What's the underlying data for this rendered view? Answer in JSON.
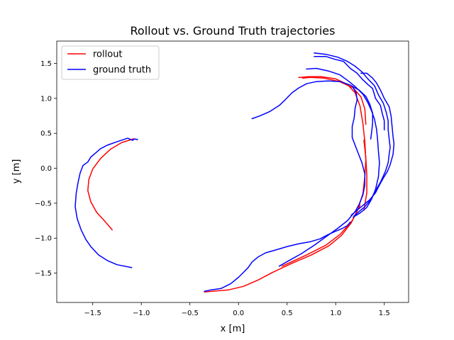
{
  "chart_data": {
    "type": "line",
    "title": "Rollout vs. Ground Truth trajectories",
    "xlabel": "x [m]",
    "ylabel": "y [m]",
    "xlim": [
      -1.87,
      1.75
    ],
    "ylim": [
      -1.92,
      1.82
    ],
    "xticks": [
      {
        "value": -1.5,
        "label": "−1.5"
      },
      {
        "value": -1.0,
        "label": "−1.0"
      },
      {
        "value": -0.5,
        "label": "−0.5"
      },
      {
        "value": 0.0,
        "label": "0.0"
      },
      {
        "value": 0.5,
        "label": "0.5"
      },
      {
        "value": 1.0,
        "label": "1.0"
      },
      {
        "value": 1.5,
        "label": "1.5"
      }
    ],
    "yticks": [
      {
        "value": -1.5,
        "label": "−1.5"
      },
      {
        "value": -1.0,
        "label": "−1.0"
      },
      {
        "value": -0.5,
        "label": "−0.5"
      },
      {
        "value": 0.0,
        "label": "0.0"
      },
      {
        "value": 0.5,
        "label": "0.5"
      },
      {
        "value": 1.0,
        "label": "1.0"
      },
      {
        "value": 1.5,
        "label": "1.5"
      }
    ],
    "grid": false,
    "legend_position": "top-left",
    "series": [
      {
        "name": "rollout",
        "color": "#ff0000",
        "paths": [
          [
            [
              -1.08,
              0.42
            ],
            [
              -1.2,
              0.37
            ],
            [
              -1.32,
              0.27
            ],
            [
              -1.42,
              0.14
            ],
            [
              -1.5,
              -0.01
            ],
            [
              -1.54,
              -0.16
            ],
            [
              -1.55,
              -0.32
            ],
            [
              -1.52,
              -0.48
            ],
            [
              -1.46,
              -0.63
            ],
            [
              -1.38,
              -0.75
            ],
            [
              -1.3,
              -0.88
            ]
          ],
          [
            [
              -0.35,
              -1.77
            ],
            [
              -0.1,
              -1.74
            ],
            [
              0.05,
              -1.69
            ],
            [
              0.2,
              -1.6
            ],
            [
              0.35,
              -1.49
            ],
            [
              0.55,
              -1.36
            ],
            [
              0.75,
              -1.24
            ],
            [
              0.93,
              -1.11
            ],
            [
              1.06,
              -0.96
            ],
            [
              1.16,
              -0.78
            ],
            [
              1.23,
              -0.58
            ],
            [
              1.28,
              -0.36
            ],
            [
              1.3,
              -0.12
            ],
            [
              1.31,
              0.12
            ],
            [
              1.3,
              0.38
            ],
            [
              1.28,
              0.64
            ],
            [
              1.25,
              0.89
            ],
            [
              1.2,
              1.08
            ],
            [
              1.12,
              1.2
            ],
            [
              1.0,
              1.28
            ],
            [
              0.85,
              1.31
            ],
            [
              0.72,
              1.31
            ],
            [
              0.62,
              1.3
            ]
          ],
          [
            [
              1.29,
              -0.6
            ],
            [
              1.32,
              -0.35
            ],
            [
              1.32,
              -0.1
            ],
            [
              1.31,
              0.15
            ],
            [
              1.29,
              0.4
            ]
          ],
          [
            [
              1.31,
              0.63
            ],
            [
              1.3,
              0.85
            ],
            [
              1.26,
              1.02
            ],
            [
              1.18,
              1.15
            ],
            [
              1.04,
              1.24
            ],
            [
              0.88,
              1.29
            ],
            [
              0.74,
              1.3
            ],
            [
              0.66,
              1.29
            ]
          ],
          [
            [
              0.45,
              -1.4
            ],
            [
              0.7,
              -1.24
            ],
            [
              0.9,
              -1.1
            ],
            [
              1.05,
              -0.94
            ],
            [
              1.17,
              -0.75
            ],
            [
              1.25,
              -0.53
            ]
          ]
        ]
      },
      {
        "name": "ground truth",
        "color": "#0000ff",
        "paths": [
          [
            [
              -1.04,
              0.41
            ],
            [
              -1.07,
              0.42
            ],
            [
              -1.09,
              0.4
            ],
            [
              -1.14,
              0.43
            ],
            [
              -1.25,
              0.38
            ],
            [
              -1.35,
              0.33
            ],
            [
              -1.42,
              0.28
            ],
            [
              -1.47,
              0.22
            ],
            [
              -1.52,
              0.16
            ],
            [
              -1.55,
              0.09
            ],
            [
              -1.6,
              0.04
            ],
            [
              -1.63,
              -0.07
            ],
            [
              -1.65,
              -0.2
            ],
            [
              -1.67,
              -0.36
            ],
            [
              -1.68,
              -0.55
            ],
            [
              -1.66,
              -0.72
            ],
            [
              -1.62,
              -0.88
            ],
            [
              -1.57,
              -1.02
            ],
            [
              -1.52,
              -1.12
            ],
            [
              -1.44,
              -1.24
            ],
            [
              -1.35,
              -1.32
            ],
            [
              -1.25,
              -1.38
            ],
            [
              -1.1,
              -1.42
            ]
          ],
          [
            [
              0.14,
              0.71
            ],
            [
              0.22,
              0.75
            ],
            [
              0.32,
              0.81
            ],
            [
              0.42,
              0.9
            ],
            [
              0.48,
              0.98
            ],
            [
              0.55,
              1.08
            ],
            [
              0.62,
              1.15
            ],
            [
              0.7,
              1.21
            ],
            [
              0.8,
              1.24
            ],
            [
              0.92,
              1.25
            ],
            [
              1.05,
              1.24
            ],
            [
              1.15,
              1.19
            ],
            [
              1.24,
              1.12
            ],
            [
              1.31,
              1.03
            ],
            [
              1.35,
              0.92
            ],
            [
              1.38,
              0.79
            ],
            [
              1.38,
              0.65
            ],
            [
              1.37,
              0.52
            ],
            [
              1.36,
              0.42
            ]
          ],
          [
            [
              0.7,
              1.42
            ],
            [
              0.8,
              1.43
            ],
            [
              0.93,
              1.39
            ],
            [
              1.04,
              1.34
            ],
            [
              1.12,
              1.26
            ],
            [
              1.2,
              1.17
            ],
            [
              1.28,
              1.06
            ],
            [
              1.33,
              0.94
            ],
            [
              1.37,
              0.82
            ],
            [
              1.4,
              0.7
            ],
            [
              1.42,
              0.56
            ],
            [
              1.43,
              0.42
            ],
            [
              1.44,
              0.24
            ],
            [
              1.45,
              0.08
            ],
            [
              1.44,
              -0.12
            ],
            [
              1.41,
              -0.3
            ],
            [
              1.37,
              -0.44
            ],
            [
              1.32,
              -0.56
            ],
            [
              1.25,
              -0.64
            ],
            [
              1.18,
              -0.7
            ]
          ],
          [
            [
              0.78,
              1.65
            ],
            [
              0.9,
              1.63
            ],
            [
              1.02,
              1.59
            ],
            [
              1.12,
              1.53
            ],
            [
              1.2,
              1.46
            ],
            [
              1.27,
              1.38
            ],
            [
              1.33,
              1.28
            ],
            [
              1.4,
              1.18
            ],
            [
              1.44,
              1.05
            ],
            [
              1.49,
              0.93
            ],
            [
              1.52,
              0.8
            ],
            [
              1.54,
              0.68
            ],
            [
              1.54,
              0.55
            ],
            [
              1.55,
              0.42
            ],
            [
              1.56,
              0.3
            ],
            [
              1.55,
              0.2
            ],
            [
              1.54,
              0.08
            ],
            [
              1.51,
              -0.05
            ],
            [
              1.46,
              -0.2
            ],
            [
              1.41,
              -0.32
            ],
            [
              1.36,
              -0.45
            ],
            [
              1.3,
              -0.55
            ],
            [
              1.24,
              -0.62
            ],
            [
              1.19,
              -0.68
            ]
          ],
          [
            [
              0.78,
              1.6
            ],
            [
              0.9,
              1.6
            ],
            [
              0.99,
              1.56
            ],
            [
              1.08,
              1.53
            ],
            [
              1.15,
              1.43
            ],
            [
              1.22,
              1.36
            ],
            [
              1.27,
              1.28
            ],
            [
              1.33,
              1.2
            ],
            [
              1.38,
              1.14
            ],
            [
              1.41,
              1.0
            ],
            [
              1.46,
              0.9
            ],
            [
              1.48,
              0.78
            ],
            [
              1.5,
              0.68
            ],
            [
              1.5,
              0.55
            ]
          ],
          [
            [
              1.26,
              1.36
            ],
            [
              1.32,
              1.36
            ],
            [
              1.38,
              1.29
            ],
            [
              1.42,
              1.22
            ],
            [
              1.46,
              1.12
            ],
            [
              1.5,
              1.0
            ],
            [
              1.55,
              0.88
            ],
            [
              1.57,
              0.75
            ],
            [
              1.58,
              0.6
            ],
            [
              1.59,
              0.45
            ],
            [
              1.6,
              0.35
            ],
            [
              1.59,
              0.2
            ],
            [
              1.56,
              0.05
            ],
            [
              1.53,
              -0.05
            ],
            [
              1.49,
              -0.14
            ],
            [
              1.45,
              -0.24
            ],
            [
              1.41,
              -0.35
            ],
            [
              1.35,
              -0.45
            ],
            [
              1.28,
              -0.53
            ],
            [
              1.22,
              -0.6
            ],
            [
              1.16,
              -0.67
            ]
          ],
          [
            [
              1.18,
              1.15
            ],
            [
              1.21,
              1.08
            ],
            [
              1.22,
              0.98
            ],
            [
              1.2,
              0.86
            ],
            [
              1.19,
              0.72
            ],
            [
              1.17,
              0.6
            ],
            [
              1.17,
              0.44
            ],
            [
              1.2,
              0.33
            ],
            [
              1.23,
              0.22
            ],
            [
              1.27,
              0.08
            ],
            [
              1.3,
              -0.08
            ],
            [
              1.3,
              -0.24
            ],
            [
              1.28,
              -0.38
            ],
            [
              1.24,
              -0.52
            ],
            [
              1.2,
              -0.62
            ],
            [
              1.12,
              -0.75
            ],
            [
              1.02,
              -0.86
            ],
            [
              0.9,
              -0.98
            ],
            [
              0.78,
              -1.1
            ],
            [
              0.65,
              -1.22
            ],
            [
              0.52,
              -1.32
            ],
            [
              0.42,
              -1.4
            ]
          ],
          [
            [
              -0.35,
              -1.76
            ],
            [
              -0.28,
              -1.74
            ],
            [
              -0.18,
              -1.72
            ],
            [
              -0.08,
              -1.65
            ],
            [
              0.0,
              -1.56
            ],
            [
              0.05,
              -1.49
            ],
            [
              0.1,
              -1.42
            ],
            [
              0.14,
              -1.34
            ],
            [
              0.2,
              -1.27
            ],
            [
              0.28,
              -1.21
            ],
            [
              0.38,
              -1.17
            ],
            [
              0.5,
              -1.12
            ],
            [
              0.62,
              -1.08
            ],
            [
              0.74,
              -1.05
            ],
            [
              0.84,
              -1.01
            ],
            [
              0.92,
              -0.95
            ],
            [
              1.0,
              -0.9
            ],
            [
              1.07,
              -0.86
            ],
            [
              1.12,
              -0.82
            ],
            [
              1.15,
              -0.77
            ]
          ]
        ]
      }
    ]
  }
}
